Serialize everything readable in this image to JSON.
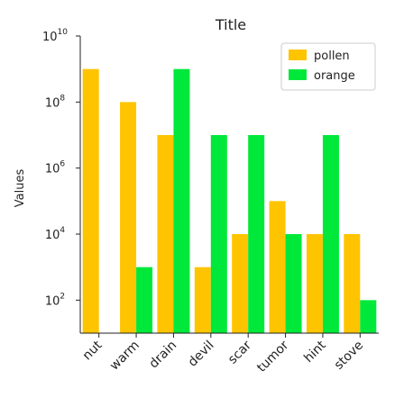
{
  "chart_data": {
    "type": "bar",
    "title": "Title",
    "xlabel": "",
    "ylabel": "Values",
    "yscale": "log",
    "ylim": [
      10,
      10000000000
    ],
    "yticks": [
      {
        "value": 100,
        "base": "10",
        "exp": "2"
      },
      {
        "value": 10000,
        "base": "10",
        "exp": "4"
      },
      {
        "value": 1000000,
        "base": "10",
        "exp": "6"
      },
      {
        "value": 100000000,
        "base": "10",
        "exp": "8"
      },
      {
        "value": 10000000000,
        "base": "10",
        "exp": "10"
      }
    ],
    "grid": false,
    "legend_position": "top-right",
    "categories": [
      "nut",
      "warm",
      "drain",
      "devil",
      "scar",
      "tumor",
      "hint",
      "stove"
    ],
    "series": [
      {
        "name": "pollen",
        "color": "#ffc400",
        "values": [
          1000000000,
          100000000,
          10000000,
          1000,
          10000,
          100000,
          10000,
          10000
        ]
      },
      {
        "name": "orange",
        "color": "#00e83a",
        "values": [
          10,
          1000,
          1000000000,
          10000000,
          10000000,
          10000,
          10000000,
          100
        ]
      }
    ]
  }
}
